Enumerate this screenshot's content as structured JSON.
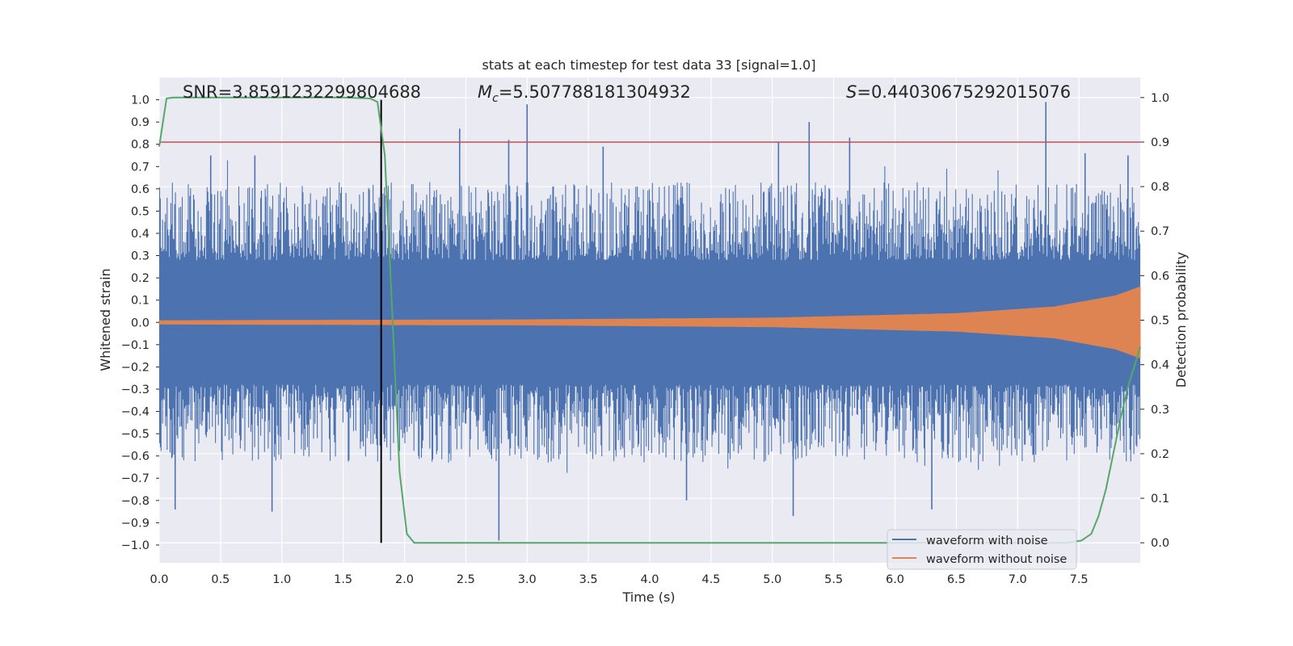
{
  "chart_data": {
    "type": "line",
    "title": "stats at each timestep for test data 33 [signal=1.0]",
    "xlabel": "Time (s)",
    "ylabel": "Whitened strain",
    "y2label": "Detection probability",
    "xlim": [
      0.0,
      8.0
    ],
    "ylim": [
      -1.08,
      1.1
    ],
    "y2lim": [
      -0.045,
      1.045
    ],
    "xticks": [
      0.0,
      0.5,
      1.0,
      1.5,
      2.0,
      2.5,
      3.0,
      3.5,
      4.0,
      4.5,
      5.0,
      5.5,
      6.0,
      6.5,
      7.0,
      7.5
    ],
    "xtick_labels": [
      "0.0",
      "0.5",
      "1.0",
      "1.5",
      "2.0",
      "2.5",
      "3.0",
      "3.5",
      "4.0",
      "4.5",
      "5.0",
      "5.5",
      "6.0",
      "6.5",
      "7.0",
      "7.5"
    ],
    "yticks": [
      1.0,
      0.9,
      0.8,
      0.7,
      0.6,
      0.5,
      0.4,
      0.3,
      0.2,
      0.1,
      0.0,
      -0.1,
      -0.2,
      -0.3,
      -0.4,
      -0.5,
      -0.6,
      -0.7,
      -0.8,
      -0.9,
      -1.0
    ],
    "ytick_labels": [
      "1.0",
      "0.9",
      "0.8",
      "0.7",
      "0.6",
      "0.5",
      "0.4",
      "0.3",
      "0.2",
      "0.1",
      "0.0",
      "−0.1",
      "−0.2",
      "−0.3",
      "−0.4",
      "−0.5",
      "−0.6",
      "−0.7",
      "−0.8",
      "−0.9",
      "−1.0"
    ],
    "y2ticks": [
      1.0,
      0.9,
      0.8,
      0.7,
      0.6,
      0.5,
      0.4,
      0.3,
      0.2,
      0.1,
      0.0
    ],
    "y2tick_labels": [
      "1.0",
      "0.9",
      "0.8",
      "0.7",
      "0.6",
      "0.5",
      "0.4",
      "0.3",
      "0.2",
      "0.1",
      "0.0"
    ],
    "grid": true,
    "annotations": {
      "snr": "SNR=3.8591232299804688",
      "mc_value": "=5.507788181304932",
      "s_value": "=0.44030675292015076",
      "mc_symbol": "M",
      "mc_subscript": "c",
      "s_symbol": "S"
    },
    "threshold_line": {
      "y2": 0.9,
      "color": "#c44e52"
    },
    "vertical_marker": {
      "x": 1.81,
      "color": "#000000"
    },
    "series": [
      {
        "name": "waveform with noise",
        "color": "#4c72b0",
        "envelope": {
          "core_abs": 0.2,
          "typical_peak": 0.6
        },
        "notable_peaks": [
          {
            "x": 0.13,
            "y": -0.84
          },
          {
            "x": 0.42,
            "y": 0.75
          },
          {
            "x": 0.78,
            "y": 0.75
          },
          {
            "x": 0.92,
            "y": -0.85
          },
          {
            "x": 1.81,
            "y": 0.99
          },
          {
            "x": 2.45,
            "y": 0.87
          },
          {
            "x": 2.77,
            "y": -0.98
          },
          {
            "x": 2.85,
            "y": 0.82
          },
          {
            "x": 3.0,
            "y": 0.98
          },
          {
            "x": 3.62,
            "y": 0.79
          },
          {
            "x": 4.3,
            "y": -0.8
          },
          {
            "x": 5.05,
            "y": 0.81
          },
          {
            "x": 5.17,
            "y": -0.87
          },
          {
            "x": 5.3,
            "y": 0.9
          },
          {
            "x": 5.63,
            "y": 0.83
          },
          {
            "x": 6.3,
            "y": -0.84
          },
          {
            "x": 7.23,
            "y": 0.99
          },
          {
            "x": 7.55,
            "y": 0.76
          },
          {
            "x": 7.9,
            "y": 0.75
          }
        ]
      },
      {
        "name": "waveform without noise",
        "color": "#dd8452",
        "amplitude_points": [
          {
            "x": 0.0,
            "a": 0.008
          },
          {
            "x": 3.0,
            "a": 0.012
          },
          {
            "x": 5.0,
            "a": 0.02
          },
          {
            "x": 6.5,
            "a": 0.04
          },
          {
            "x": 7.3,
            "a": 0.07
          },
          {
            "x": 7.8,
            "a": 0.12
          },
          {
            "x": 8.0,
            "a": 0.16
          }
        ]
      },
      {
        "name": "detection probability",
        "axis": "right",
        "color": "#55a868",
        "x": [
          0.0,
          0.06,
          0.12,
          0.2,
          0.4,
          0.8,
          1.2,
          1.5,
          1.72,
          1.78,
          1.84,
          1.9,
          1.96,
          2.02,
          2.08,
          2.2,
          3.0,
          5.0,
          7.0,
          7.4,
          7.52,
          7.6,
          7.66,
          7.72,
          7.78,
          7.84,
          7.9,
          8.0
        ],
        "y": [
          0.89,
          0.998,
          1.0,
          1.0,
          1.0,
          1.0,
          1.0,
          1.0,
          0.998,
          0.99,
          0.87,
          0.52,
          0.16,
          0.02,
          0.0,
          0.0,
          0.0,
          0.0,
          0.0,
          0.0,
          0.005,
          0.02,
          0.06,
          0.12,
          0.2,
          0.28,
          0.35,
          0.44
        ]
      }
    ],
    "legend": {
      "position": "lower-right",
      "entries": [
        {
          "label": "waveform with noise",
          "color": "#4c72b0"
        },
        {
          "label": "waveform without noise",
          "color": "#dd8452"
        }
      ]
    },
    "colors": {
      "background": "#eaeaf2",
      "grid": "#ffffff"
    }
  }
}
